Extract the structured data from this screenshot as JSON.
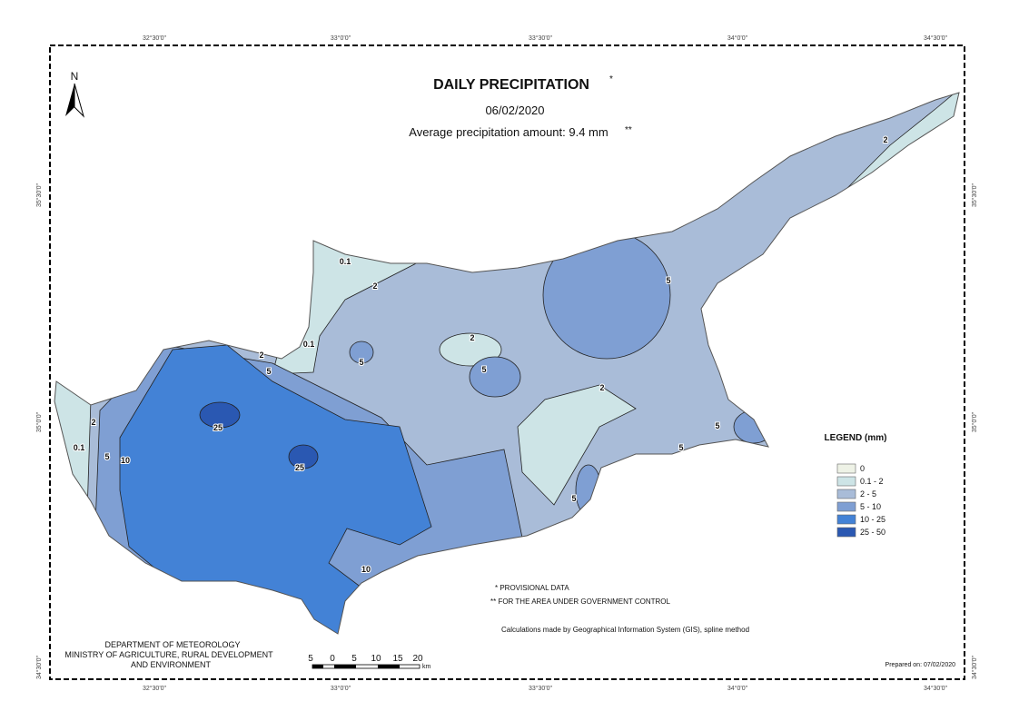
{
  "header": {
    "title": "DAILY PRECIPITATION",
    "title_mark": "*",
    "date": "06/02/2020",
    "average": "Average precipitation amount: 9.4 mm",
    "average_mark": "**"
  },
  "north": "N",
  "coordinates": {
    "top": [
      "32°30'0\"",
      "33°0'0\"",
      "33°30'0\"",
      "34°0'0\"",
      "34°30'0\""
    ],
    "bottom": [
      "32°30'0\"",
      "33°0'0\"",
      "33°30'0\"",
      "34°0'0\"",
      "34°30'0\""
    ],
    "left": [
      "35°30'0\"",
      "35°0'0\"",
      "34°30'0\""
    ],
    "right": [
      "35°30'0\"",
      "35°0'0\"",
      "34°30'0\""
    ]
  },
  "legend": {
    "title": "LEGEND (mm)",
    "items": [
      {
        "label": "0",
        "color": "#eef2e6"
      },
      {
        "label": "0.1 - 2",
        "color": "#cde4e6"
      },
      {
        "label": "2 - 5",
        "color": "#a9bcd8"
      },
      {
        "label": "5 - 10",
        "color": "#7f9fd3"
      },
      {
        "label": "10 - 25",
        "color": "#4382d6"
      },
      {
        "label": "25 - 50",
        "color": "#2a58b2"
      }
    ]
  },
  "contour_labels": [
    "0.1",
    "2",
    "2",
    "5",
    "5",
    "2",
    "5",
    "5",
    "5",
    "5",
    "10",
    "25",
    "25",
    "10",
    "5",
    "2",
    "0.1",
    "2",
    "2",
    "5",
    "0.1"
  ],
  "notes": [
    "* PROVISIONAL DATA",
    "** FOR THE AREA UNDER GOVERNMENT CONTROL"
  ],
  "method": "Calculations made by Geographical Information System (GIS), spline method",
  "prepared": "Prepared on: 07/02/2020",
  "department": [
    "DEPARTMENT OF METEOROLOGY",
    "MINISTRY OF AGRICULTURE, RURAL DEVELOPMENT",
    "AND ENVIRONMENT"
  ],
  "scale_bar": {
    "labels": [
      "5",
      "0",
      "5",
      "10",
      "15",
      "20"
    ],
    "unit": "km"
  }
}
